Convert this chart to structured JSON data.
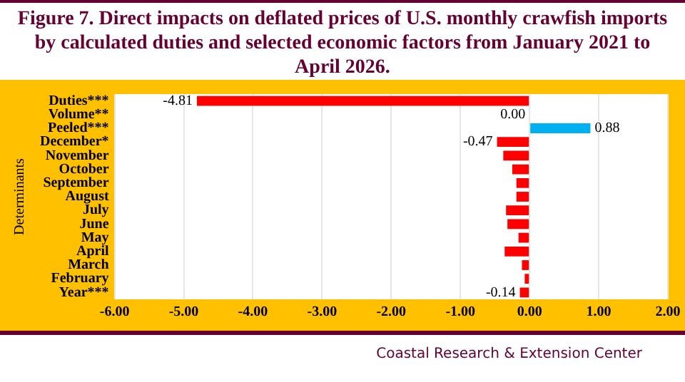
{
  "chart_data": {
    "type": "bar",
    "orientation": "horizontal",
    "title": "Figure 7. Direct impacts on deflated prices of U.S. monthly crawfish imports by calculated duties and selected economic factors from January 2021 to April 2026.",
    "ylabel": "Determinants",
    "categories": [
      "Duties***",
      "Volume**",
      "Peeled***",
      "December*",
      "November",
      "October",
      "September",
      "August",
      "July",
      "June",
      "May",
      "April",
      "March",
      "February",
      "Year***"
    ],
    "values": [
      -4.81,
      0.0,
      0.88,
      -0.47,
      -0.38,
      -0.25,
      -0.19,
      -0.19,
      -0.34,
      -0.32,
      -0.16,
      -0.36,
      -0.11,
      -0.07,
      -0.14
    ],
    "colors": [
      "#ff0000",
      "#ff0000",
      "#00b0f0",
      "#ff0000",
      "#ff0000",
      "#ff0000",
      "#ff0000",
      "#ff0000",
      "#ff0000",
      "#ff0000",
      "#ff0000",
      "#ff0000",
      "#ff0000",
      "#ff0000",
      "#ff0000"
    ],
    "value_labels": [
      "-4.81",
      "0.00",
      "0.88",
      "-0.47",
      null,
      null,
      null,
      null,
      null,
      null,
      null,
      null,
      null,
      null,
      "-0.14"
    ],
    "xlim": [
      -6,
      2
    ],
    "xticks": [
      {
        "value": -6,
        "label": "-6.00"
      },
      {
        "value": -5,
        "label": "-5.00"
      },
      {
        "value": -4,
        "label": "-4.00"
      },
      {
        "value": -3,
        "label": "-3.00"
      },
      {
        "value": -2,
        "label": "-2.00"
      },
      {
        "value": -1,
        "label": "-1.00"
      },
      {
        "value": 0,
        "label": "0.00"
      },
      {
        "value": 1,
        "label": "1.00"
      },
      {
        "value": 2,
        "label": "2.00"
      }
    ],
    "grid": "x",
    "legend": false,
    "annotations": [
      "Coastal Research & Extension Center"
    ]
  }
}
